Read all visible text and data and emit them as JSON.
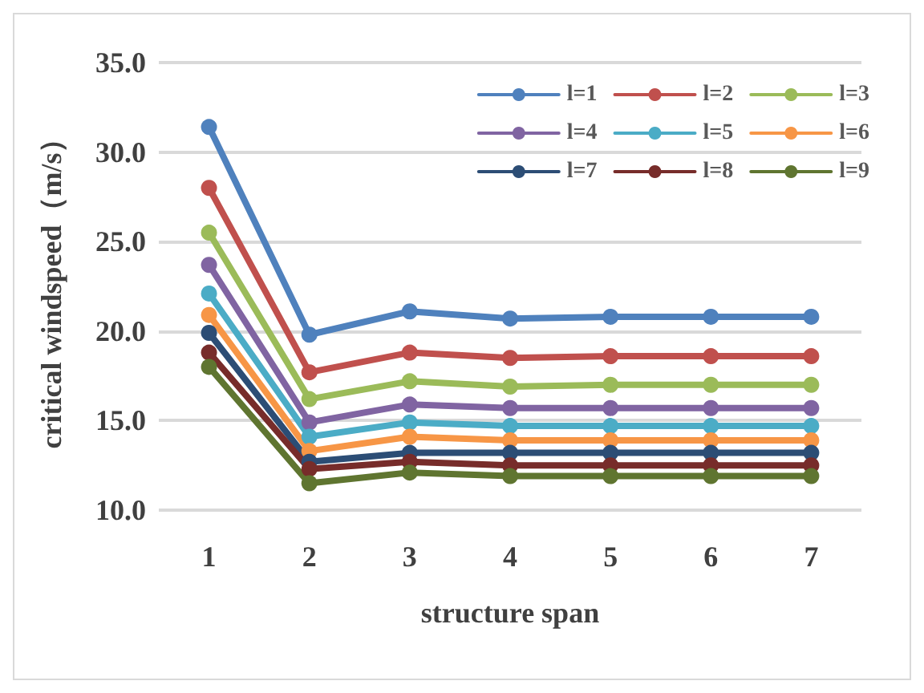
{
  "chart_data": {
    "type": "line",
    "xlabel": "structure span",
    "ylabel": "critical windspeed（m/s）",
    "categories": [
      "1",
      "2",
      "3",
      "4",
      "5",
      "6",
      "7"
    ],
    "ylim": [
      10,
      35
    ],
    "yticks": [
      {
        "value": 10,
        "label": "10.0"
      },
      {
        "value": 15,
        "label": "15.0"
      },
      {
        "value": 20,
        "label": "20.0"
      },
      {
        "value": 25,
        "label": "25.0"
      },
      {
        "value": 30,
        "label": "30.0"
      },
      {
        "value": 35,
        "label": "35.0"
      }
    ],
    "grid": "y",
    "legend": "top right",
    "marker": "circle",
    "line_style": "solid",
    "series": [
      {
        "name": "l=1",
        "color": "#4f81bd",
        "values": [
          31.4,
          19.8,
          21.1,
          20.7,
          20.8,
          20.8,
          20.8
        ]
      },
      {
        "name": "l=2",
        "color": "#c0504d",
        "values": [
          28.0,
          17.7,
          18.8,
          18.5,
          18.6,
          18.6,
          18.6
        ]
      },
      {
        "name": "l=3",
        "color": "#9bbb59",
        "values": [
          25.5,
          16.2,
          17.2,
          16.9,
          17.0,
          17.0,
          17.0
        ]
      },
      {
        "name": "l=4",
        "color": "#8064a2",
        "values": [
          23.7,
          14.9,
          15.9,
          15.7,
          15.7,
          15.7,
          15.7
        ]
      },
      {
        "name": "l=5",
        "color": "#4bacc6",
        "values": [
          22.1,
          14.1,
          14.9,
          14.7,
          14.7,
          14.7,
          14.7
        ]
      },
      {
        "name": "l=6",
        "color": "#f79646",
        "values": [
          20.9,
          13.3,
          14.1,
          13.9,
          13.9,
          13.9,
          13.9
        ]
      },
      {
        "name": "l=7",
        "color": "#2c4d75",
        "values": [
          19.9,
          12.7,
          13.2,
          13.2,
          13.2,
          13.2,
          13.2
        ]
      },
      {
        "name": "l=8",
        "color": "#772c2a",
        "values": [
          18.8,
          12.3,
          12.7,
          12.5,
          12.5,
          12.5,
          12.5
        ]
      },
      {
        "name": "l=9",
        "color": "#5f7530",
        "values": [
          18.0,
          11.5,
          12.1,
          11.9,
          11.9,
          11.9,
          11.9
        ]
      }
    ]
  }
}
